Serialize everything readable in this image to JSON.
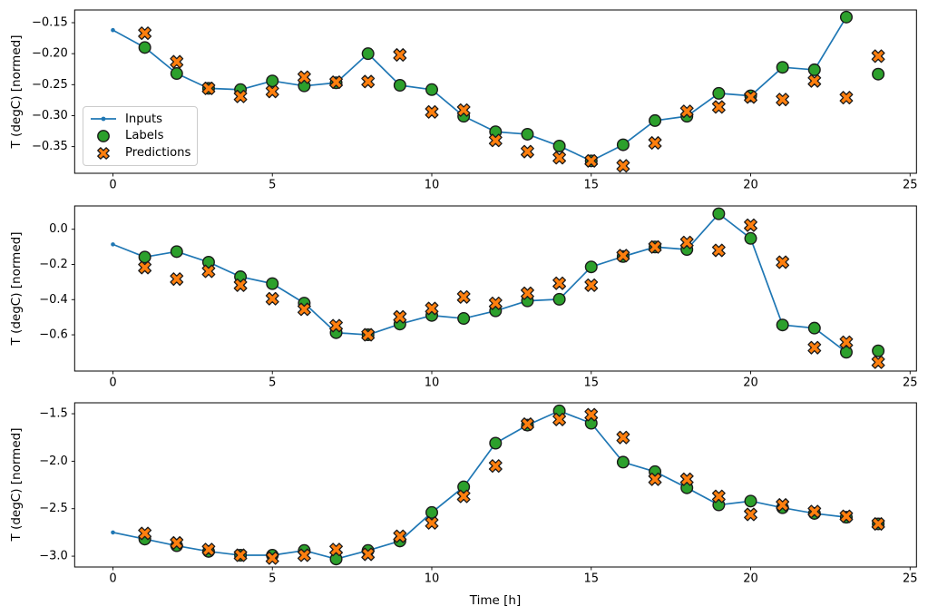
{
  "legend": {
    "items": [
      {
        "label": "Inputs",
        "marker": "line-dot"
      },
      {
        "label": "Labels",
        "marker": "circle"
      },
      {
        "label": "Predictions",
        "marker": "X"
      }
    ]
  },
  "colors": {
    "inputs": "#1f77b4",
    "labels": "#2ca02c",
    "predictions": "#ff7f0e",
    "edge": "#1a1a1a",
    "axis": "#000000"
  },
  "chart_data": [
    {
      "type": "line+scatter",
      "title": "",
      "xlabel": "",
      "ylabel": "T (degC) [normed]",
      "xlim": [
        -1.2,
        25.2
      ],
      "ylim": [
        -0.393,
        -0.1295
      ],
      "xticks": [
        0,
        5,
        10,
        15,
        20,
        25
      ],
      "yticks": [
        -0.15,
        -0.2,
        -0.25,
        -0.3,
        -0.35
      ],
      "ytick_decimals": 2,
      "series": [
        {
          "name": "Inputs",
          "type": "line",
          "marker": "dot",
          "x": [
            0,
            1,
            2,
            3,
            4,
            5,
            6,
            7,
            8,
            9,
            10,
            11,
            12,
            13,
            14,
            15,
            16,
            17,
            18,
            19,
            20,
            21,
            22,
            23
          ],
          "y": [
            -0.162,
            -0.19,
            -0.232,
            -0.256,
            -0.258,
            -0.244,
            -0.252,
            -0.247,
            -0.2,
            -0.251,
            -0.258,
            -0.301,
            -0.326,
            -0.33,
            -0.349,
            -0.373,
            -0.347,
            -0.308,
            -0.301,
            -0.264,
            -0.268,
            -0.222,
            -0.226,
            -0.141
          ]
        },
        {
          "name": "Labels",
          "type": "scatter",
          "marker": "circle",
          "x": [
            1,
            2,
            3,
            4,
            5,
            6,
            7,
            8,
            9,
            10,
            11,
            12,
            13,
            14,
            15,
            16,
            17,
            18,
            19,
            20,
            21,
            22,
            23,
            24
          ],
          "y": [
            -0.19,
            -0.232,
            -0.256,
            -0.258,
            -0.244,
            -0.252,
            -0.247,
            -0.2,
            -0.251,
            -0.258,
            -0.301,
            -0.326,
            -0.33,
            -0.349,
            -0.373,
            -0.347,
            -0.308,
            -0.301,
            -0.264,
            -0.268,
            -0.222,
            -0.226,
            -0.141,
            -0.233
          ]
        },
        {
          "name": "Predictions",
          "type": "scatter",
          "marker": "X",
          "x": [
            1,
            2,
            3,
            4,
            5,
            6,
            7,
            8,
            9,
            10,
            11,
            12,
            13,
            14,
            15,
            16,
            17,
            18,
            19,
            20,
            21,
            22,
            23,
            24
          ],
          "y": [
            -0.167,
            -0.213,
            -0.256,
            -0.269,
            -0.261,
            -0.238,
            -0.246,
            -0.245,
            -0.202,
            -0.294,
            -0.291,
            -0.34,
            -0.358,
            -0.368,
            -0.373,
            -0.381,
            -0.344,
            -0.293,
            -0.286,
            -0.27,
            -0.274,
            -0.244,
            -0.271,
            -0.204
          ]
        }
      ]
    },
    {
      "type": "line+scatter",
      "title": "",
      "xlabel": "",
      "ylabel": "T (degC) [normed]",
      "xlim": [
        -1.2,
        25.2
      ],
      "ylim": [
        -0.806,
        0.1325
      ],
      "xticks": [
        0,
        5,
        10,
        15,
        20,
        25
      ],
      "yticks": [
        0.0,
        -0.2,
        -0.4,
        -0.6
      ],
      "ytick_decimals": 1,
      "series": [
        {
          "name": "Inputs",
          "type": "line",
          "marker": "dot",
          "x": [
            0,
            1,
            2,
            3,
            4,
            5,
            6,
            7,
            8,
            9,
            10,
            11,
            12,
            13,
            14,
            15,
            16,
            17,
            18,
            19,
            20,
            21,
            22,
            23
          ],
          "y": [
            -0.086,
            -0.158,
            -0.127,
            -0.187,
            -0.27,
            -0.309,
            -0.42,
            -0.588,
            -0.6,
            -0.539,
            -0.49,
            -0.507,
            -0.464,
            -0.407,
            -0.398,
            -0.214,
            -0.155,
            -0.101,
            -0.115,
            0.088,
            -0.052,
            -0.544,
            -0.562,
            -0.699
          ]
        },
        {
          "name": "Labels",
          "type": "scatter",
          "marker": "circle",
          "x": [
            1,
            2,
            3,
            4,
            5,
            6,
            7,
            8,
            9,
            10,
            11,
            12,
            13,
            14,
            15,
            16,
            17,
            18,
            19,
            20,
            21,
            22,
            23,
            24
          ],
          "y": [
            -0.158,
            -0.127,
            -0.187,
            -0.27,
            -0.309,
            -0.42,
            -0.588,
            -0.6,
            -0.539,
            -0.49,
            -0.507,
            -0.464,
            -0.407,
            -0.398,
            -0.214,
            -0.155,
            -0.101,
            -0.115,
            0.088,
            -0.052,
            -0.544,
            -0.562,
            -0.699,
            -0.691
          ]
        },
        {
          "name": "Predictions",
          "type": "scatter",
          "marker": "X",
          "x": [
            1,
            2,
            3,
            4,
            5,
            6,
            7,
            8,
            9,
            10,
            11,
            12,
            13,
            14,
            15,
            16,
            17,
            18,
            19,
            20,
            21,
            22,
            23,
            24
          ],
          "y": [
            -0.218,
            -0.283,
            -0.239,
            -0.318,
            -0.395,
            -0.455,
            -0.548,
            -0.6,
            -0.498,
            -0.45,
            -0.385,
            -0.421,
            -0.364,
            -0.307,
            -0.318,
            -0.15,
            -0.101,
            -0.075,
            -0.12,
            0.023,
            -0.187,
            -0.673,
            -0.642,
            -0.756
          ]
        }
      ]
    },
    {
      "type": "line+scatter",
      "title": "",
      "xlabel": "Time [h]",
      "ylabel": "T (degC) [normed]",
      "xlim": [
        -1.2,
        25.2
      ],
      "ylim": [
        -3.114,
        -1.385
      ],
      "xticks": [
        0,
        5,
        10,
        15,
        20,
        25
      ],
      "yticks": [
        -1.5,
        -2.0,
        -2.5,
        -3.0
      ],
      "ytick_decimals": 1,
      "series": [
        {
          "name": "Inputs",
          "type": "line",
          "marker": "dot",
          "x": [
            0,
            1,
            2,
            3,
            4,
            5,
            6,
            7,
            8,
            9,
            10,
            11,
            12,
            13,
            14,
            15,
            16,
            17,
            18,
            19,
            20,
            21,
            22,
            23
          ],
          "y": [
            -2.75,
            -2.82,
            -2.89,
            -2.95,
            -2.99,
            -2.99,
            -2.94,
            -3.03,
            -2.94,
            -2.84,
            -2.54,
            -2.27,
            -1.81,
            -1.62,
            -1.47,
            -1.6,
            -2.01,
            -2.11,
            -2.28,
            -2.46,
            -2.42,
            -2.49,
            -2.55,
            -2.59
          ]
        },
        {
          "name": "Labels",
          "type": "scatter",
          "marker": "circle",
          "x": [
            1,
            2,
            3,
            4,
            5,
            6,
            7,
            8,
            9,
            10,
            11,
            12,
            13,
            14,
            15,
            16,
            17,
            18,
            19,
            20,
            21,
            22,
            23,
            24
          ],
          "y": [
            -2.82,
            -2.89,
            -2.95,
            -2.99,
            -2.99,
            -2.94,
            -3.03,
            -2.94,
            -2.84,
            -2.54,
            -2.27,
            -1.81,
            -1.62,
            -1.47,
            -1.6,
            -2.01,
            -2.11,
            -2.28,
            -2.46,
            -2.42,
            -2.49,
            -2.55,
            -2.59,
            -2.66
          ]
        },
        {
          "name": "Predictions",
          "type": "scatter",
          "marker": "X",
          "x": [
            1,
            2,
            3,
            4,
            5,
            6,
            7,
            8,
            9,
            10,
            11,
            12,
            13,
            14,
            15,
            16,
            17,
            18,
            19,
            20,
            21,
            22,
            23,
            24
          ],
          "y": [
            -2.76,
            -2.86,
            -2.93,
            -2.99,
            -3.02,
            -2.99,
            -2.93,
            -2.98,
            -2.79,
            -2.65,
            -2.37,
            -2.05,
            -1.61,
            -1.56,
            -1.51,
            -1.75,
            -2.19,
            -2.19,
            -2.37,
            -2.56,
            -2.46,
            -2.53,
            -2.58,
            -2.66
          ]
        }
      ]
    }
  ]
}
